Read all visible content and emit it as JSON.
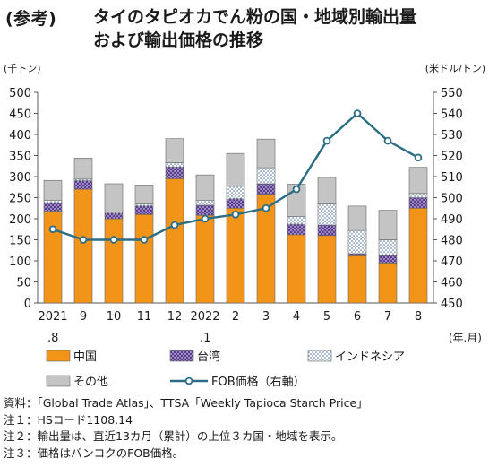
{
  "header": {
    "label": "(参考)",
    "title_line1": "タイのタピオカでん粉の国・地域別輸出量",
    "title_line2": "および輸出価格の推移"
  },
  "chart_data": {
    "type": "bar",
    "stacked": true,
    "categories": [
      "2021\n.8",
      "9",
      "10",
      "11",
      "12",
      "2022\n.1",
      "2",
      "3",
      "4",
      "5",
      "6",
      "7",
      "8"
    ],
    "x_unit": "(年.月)",
    "y_left": {
      "unit": "(千トン)",
      "range": [
        0,
        500
      ],
      "ticks": [
        0,
        50,
        100,
        150,
        200,
        250,
        300,
        350,
        400,
        450,
        500
      ]
    },
    "y_right": {
      "unit": "(米ドル/トン)",
      "range": [
        450,
        550
      ],
      "ticks": [
        450,
        460,
        470,
        480,
        490,
        500,
        510,
        520,
        530,
        540,
        550
      ]
    },
    "series": [
      {
        "name": "中国",
        "kind": "bar",
        "color": "#f29418",
        "values": [
          218,
          270,
          200,
          210,
          295,
          208,
          225,
          258,
          162,
          160,
          112,
          95,
          225
        ]
      },
      {
        "name": "台湾",
        "kind": "bar",
        "color": "#5a3d92",
        "pattern": "dots",
        "values": [
          20,
          20,
          13,
          20,
          28,
          24,
          22,
          25,
          25,
          25,
          5,
          18,
          25
        ]
      },
      {
        "name": "インドネシア",
        "kind": "bar",
        "color": "#ffffff",
        "pattern": "dots-blue",
        "values": [
          6,
          4,
          3,
          5,
          10,
          12,
          30,
          38,
          18,
          50,
          55,
          37,
          10
        ]
      },
      {
        "name": "その他",
        "kind": "bar",
        "color": "#c4c4c4",
        "values": [
          47,
          50,
          67,
          45,
          57,
          60,
          78,
          68,
          77,
          63,
          58,
          70,
          62
        ]
      },
      {
        "name": "FOB価格（右軸）",
        "kind": "line",
        "axis": "right",
        "color": "#2b6d84",
        "values": [
          485,
          480,
          480,
          480,
          487,
          490,
          492,
          495,
          504,
          527,
          540,
          527,
          519
        ]
      }
    ],
    "grid": false,
    "legend": "bottom"
  },
  "notes": [
    "資料：「Global Trade Atlas」、TTSA「Weekly Tapioca Starch Price」",
    "注１：HSコード1108.14",
    "注２：輸出量は、直近13カ月（累計）の上位３カ国・地域を表示。",
    "注３：価格はバンコクのFOB価格。"
  ]
}
